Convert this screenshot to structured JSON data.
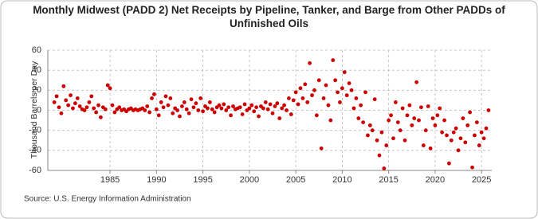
{
  "chart_data": {
    "type": "scatter",
    "title": "Monthly Midwest (PADD 2) Net Receipts by Pipeline, Tanker, and Barge from Other PADDs of Unfinished Oils",
    "y_label": "Thousand Barrels per Day",
    "source": "Source: U.S. Energy Information Administration",
    "color": "#cc0000",
    "grid": true,
    "xlim": [
      1978.3,
      2026.1
    ],
    "xticks": [
      1985,
      1990,
      1995,
      2000,
      2005,
      2010,
      2015,
      2020,
      2025
    ],
    "ylim": [
      -60,
      60
    ],
    "yticks": [
      -60,
      -40,
      -20,
      0,
      20,
      40,
      60
    ],
    "x": [
      1979,
      1979.25,
      1979.5,
      1979.75,
      1980,
      1980.25,
      1980.5,
      1980.75,
      1981,
      1981.25,
      1981.5,
      1981.75,
      1982,
      1982.25,
      1982.5,
      1982.75,
      1983,
      1983.25,
      1983.5,
      1983.75,
      1984,
      1984.25,
      1984.5,
      1984.75,
      1985,
      1985.25,
      1985.5,
      1985.75,
      1986,
      1986.25,
      1986.5,
      1986.75,
      1987,
      1987.25,
      1987.5,
      1987.75,
      1988,
      1988.25,
      1988.5,
      1988.75,
      1989,
      1989.25,
      1989.5,
      1989.75,
      1990,
      1990.25,
      1990.5,
      1990.75,
      1991,
      1991.25,
      1991.5,
      1991.75,
      1992,
      1992.25,
      1992.5,
      1992.75,
      1993,
      1993.25,
      1993.5,
      1993.75,
      1994,
      1994.25,
      1994.5,
      1994.75,
      1995,
      1995.25,
      1995.5,
      1995.75,
      1996,
      1996.25,
      1996.5,
      1996.75,
      1997,
      1997.25,
      1997.5,
      1997.75,
      1998,
      1998.25,
      1998.5,
      1998.75,
      1999,
      1999.25,
      1999.5,
      1999.75,
      2000,
      2000.25,
      2000.5,
      2000.75,
      2001,
      2001.25,
      2001.5,
      2001.75,
      2002,
      2002.25,
      2002.5,
      2002.75,
      2003,
      2003.25,
      2003.5,
      2003.75,
      2004,
      2004.25,
      2004.5,
      2004.75,
      2005,
      2005.25,
      2005.5,
      2005.75,
      2006,
      2006.25,
      2006.5,
      2006.75,
      2007,
      2007.25,
      2007.5,
      2007.75,
      2008,
      2008.25,
      2008.5,
      2008.75,
      2009,
      2009.25,
      2009.5,
      2009.75,
      2010,
      2010.25,
      2010.5,
      2010.75,
      2011,
      2011.25,
      2011.5,
      2011.75,
      2012,
      2012.25,
      2012.5,
      2012.75,
      2013,
      2013.25,
      2013.5,
      2013.75,
      2014,
      2014.25,
      2014.5,
      2014.75,
      2015,
      2015.25,
      2015.5,
      2015.75,
      2016,
      2016.25,
      2016.5,
      2016.75,
      2017,
      2017.25,
      2017.5,
      2017.75,
      2018,
      2018.25,
      2018.5,
      2018.75,
      2019,
      2019.25,
      2019.5,
      2019.75,
      2020,
      2020.25,
      2020.5,
      2020.75,
      2021,
      2021.25,
      2021.5,
      2021.75,
      2022,
      2022.25,
      2022.5,
      2022.75,
      2023,
      2023.25,
      2023.5,
      2023.75,
      2024,
      2024.25,
      2024.5,
      2024.75,
      2025,
      2025.25,
      2025.5,
      2025.75
    ],
    "values": [
      8,
      14,
      3,
      -3,
      24,
      10,
      5,
      15,
      2,
      7,
      12,
      4,
      1,
      0,
      3,
      8,
      14,
      2,
      -2,
      5,
      -7,
      3,
      1,
      25,
      22,
      5,
      -2,
      1,
      3,
      0,
      1,
      -1,
      1,
      2,
      0,
      1,
      0,
      1,
      2,
      0,
      4,
      -2,
      12,
      16,
      1,
      -5,
      8,
      3,
      14,
      5,
      12,
      -3,
      2,
      0,
      -6,
      4,
      8,
      1,
      -3,
      11,
      3,
      7,
      0,
      12,
      -1,
      4,
      2,
      8,
      1,
      -2,
      3,
      5,
      2,
      6,
      0,
      3,
      -5,
      4,
      1,
      2,
      3,
      -4,
      6,
      0,
      2,
      5,
      -1,
      3,
      -6,
      4,
      2,
      8,
      1,
      6,
      -3,
      4,
      7,
      -8,
      2,
      5,
      0,
      12,
      -4,
      10,
      18,
      6,
      22,
      12,
      26,
      8,
      47,
      15,
      20,
      -5,
      30,
      -38,
      12,
      25,
      5,
      -10,
      50,
      30,
      18,
      8,
      22,
      38,
      15,
      27,
      20,
      2,
      12,
      -8,
      5,
      -12,
      18,
      -25,
      -15,
      -20,
      11,
      -30,
      -45,
      -22,
      -58,
      -35,
      -10,
      -5,
      -28,
      8,
      -12,
      -20,
      2,
      -30,
      -5,
      5,
      -15,
      -8,
      28,
      -10,
      3,
      -35,
      -20,
      4,
      -38,
      -8,
      -15,
      -5,
      2,
      -22,
      -10,
      -25,
      -53,
      -30,
      -22,
      -18,
      -40,
      -28,
      -8,
      -32,
      -15,
      -2,
      -57,
      -25,
      -12,
      -35,
      -22,
      -28,
      -18,
      0
    ]
  }
}
